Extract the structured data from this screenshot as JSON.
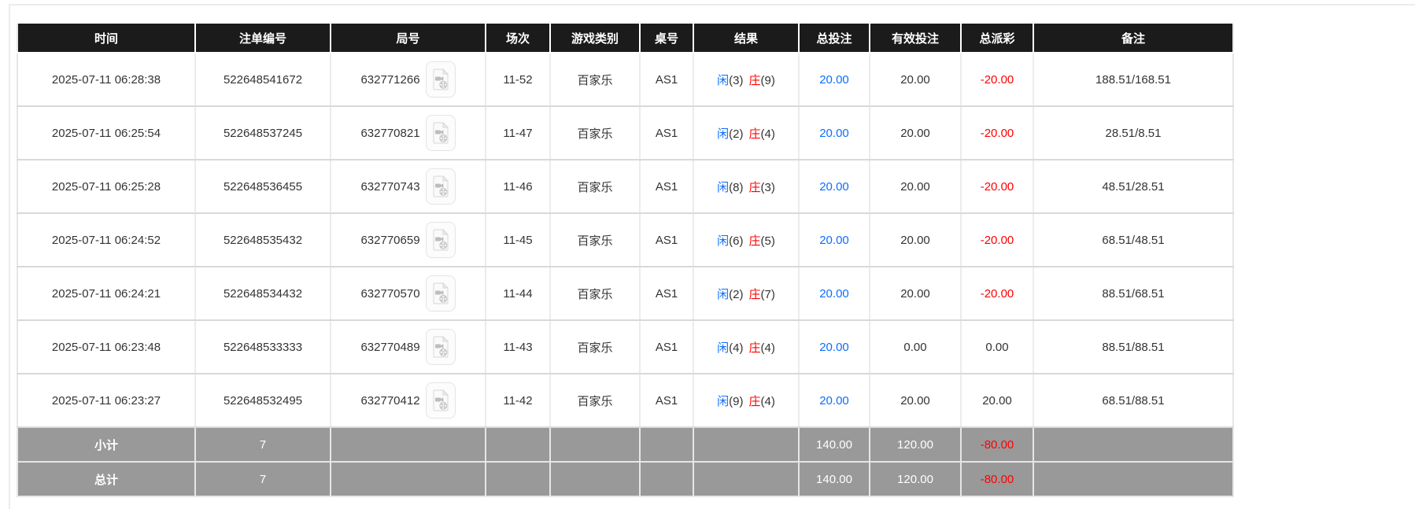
{
  "colors": {
    "header_bg": "#1b1b1b",
    "header_text": "#ffffff",
    "summary_bg": "#999999",
    "link_blue": "#0d6efd",
    "player_blue": "#0d6efd",
    "banker_red": "#ff0000",
    "negative_red": "#ff0000",
    "body_text": "#333333"
  },
  "icons": {
    "round_replay": "video-replay-icon"
  },
  "table": {
    "columns": [
      {
        "key": "time",
        "label": "时间"
      },
      {
        "key": "bet_id",
        "label": "注单编号"
      },
      {
        "key": "round",
        "label": "局号"
      },
      {
        "key": "session",
        "label": "场次"
      },
      {
        "key": "game",
        "label": "游戏类别"
      },
      {
        "key": "table_no",
        "label": "桌号"
      },
      {
        "key": "result",
        "label": "结果"
      },
      {
        "key": "total_bet",
        "label": "总投注"
      },
      {
        "key": "valid_bet",
        "label": "有效投注"
      },
      {
        "key": "payout",
        "label": "总派彩"
      },
      {
        "key": "remark",
        "label": "备注"
      }
    ],
    "rows": [
      {
        "time": "2025-07-11 06:28:38",
        "bet_id": "522648541672",
        "round": "632771266",
        "session": "11-52",
        "game": "百家乐",
        "table_no": "AS1",
        "player": "闲",
        "player_pts": "(3)",
        "banker": "庄",
        "banker_pts": "(9)",
        "total_bet": "20.00",
        "valid_bet": "20.00",
        "payout": "-20.00",
        "payout_negative": true,
        "remark": "188.51/168.51"
      },
      {
        "time": "2025-07-11 06:25:54",
        "bet_id": "522648537245",
        "round": "632770821",
        "session": "11-47",
        "game": "百家乐",
        "table_no": "AS1",
        "player": "闲",
        "player_pts": "(2)",
        "banker": "庄",
        "banker_pts": "(4)",
        "total_bet": "20.00",
        "valid_bet": "20.00",
        "payout": "-20.00",
        "payout_negative": true,
        "remark": "28.51/8.51"
      },
      {
        "time": "2025-07-11 06:25:28",
        "bet_id": "522648536455",
        "round": "632770743",
        "session": "11-46",
        "game": "百家乐",
        "table_no": "AS1",
        "player": "闲",
        "player_pts": "(8)",
        "banker": "庄",
        "banker_pts": "(3)",
        "total_bet": "20.00",
        "valid_bet": "20.00",
        "payout": "-20.00",
        "payout_negative": true,
        "remark": "48.51/28.51"
      },
      {
        "time": "2025-07-11 06:24:52",
        "bet_id": "522648535432",
        "round": "632770659",
        "session": "11-45",
        "game": "百家乐",
        "table_no": "AS1",
        "player": "闲",
        "player_pts": "(6)",
        "banker": "庄",
        "banker_pts": "(5)",
        "total_bet": "20.00",
        "valid_bet": "20.00",
        "payout": "-20.00",
        "payout_negative": true,
        "remark": "68.51/48.51"
      },
      {
        "time": "2025-07-11 06:24:21",
        "bet_id": "522648534432",
        "round": "632770570",
        "session": "11-44",
        "game": "百家乐",
        "table_no": "AS1",
        "player": "闲",
        "player_pts": "(2)",
        "banker": "庄",
        "banker_pts": "(7)",
        "total_bet": "20.00",
        "valid_bet": "20.00",
        "payout": "-20.00",
        "payout_negative": true,
        "remark": "88.51/68.51"
      },
      {
        "time": "2025-07-11 06:23:48",
        "bet_id": "522648533333",
        "round": "632770489",
        "session": "11-43",
        "game": "百家乐",
        "table_no": "AS1",
        "player": "闲",
        "player_pts": "(4)",
        "banker": "庄",
        "banker_pts": "(4)",
        "total_bet": "20.00",
        "valid_bet": "0.00",
        "payout": "0.00",
        "payout_negative": false,
        "remark": "88.51/88.51"
      },
      {
        "time": "2025-07-11 06:23:27",
        "bet_id": "522648532495",
        "round": "632770412",
        "session": "11-42",
        "game": "百家乐",
        "table_no": "AS1",
        "player": "闲",
        "player_pts": "(9)",
        "banker": "庄",
        "banker_pts": "(4)",
        "total_bet": "20.00",
        "valid_bet": "20.00",
        "payout": "20.00",
        "payout_negative": false,
        "remark": "68.51/88.51"
      }
    ],
    "subtotal": {
      "label": "小计",
      "count": "7",
      "total_bet": "140.00",
      "valid_bet": "120.00",
      "payout": "-80.00",
      "payout_negative": true
    },
    "total": {
      "label": "总计",
      "count": "7",
      "total_bet": "140.00",
      "valid_bet": "120.00",
      "payout": "-80.00",
      "payout_negative": true
    }
  }
}
